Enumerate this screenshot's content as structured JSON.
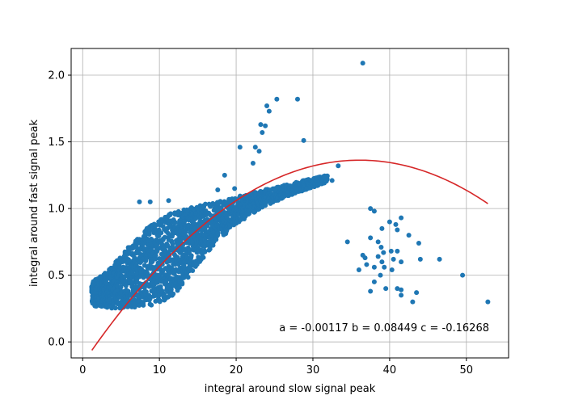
{
  "chart_data": {
    "type": "scatter",
    "xlabel": "integral around slow signal peak",
    "ylabel": "integral around fast signal peak",
    "xlim": [
      -1.5,
      55.5
    ],
    "ylim": [
      -0.12,
      2.2
    ],
    "xticks": [
      0,
      10,
      20,
      30,
      40,
      50
    ],
    "yticks": [
      0.0,
      0.5,
      1.0,
      1.5,
      2.0
    ],
    "xtick_labels": [
      "0",
      "10",
      "20",
      "30",
      "40",
      "50"
    ],
    "ytick_labels": [
      "0.0",
      "0.5",
      "1.0",
      "1.5",
      "2.0"
    ],
    "grid": true,
    "annotation": "a = -0.00117 b = 0.08449 c = -0.16268",
    "series": [
      {
        "kind": "scatter",
        "color": "#1f77b4",
        "dense_band": {
          "x_start": 1.2,
          "x_end": 32,
          "lower_curve": [
            [
              1.2,
              0.27
            ],
            [
              4,
              0.25
            ],
            [
              7,
              0.26
            ],
            [
              10,
              0.28
            ],
            [
              12,
              0.36
            ],
            [
              14,
              0.5
            ],
            [
              16,
              0.65
            ],
            [
              18,
              0.78
            ],
            [
              20,
              0.88
            ],
            [
              22,
              0.96
            ],
            [
              25,
              1.05
            ],
            [
              28,
              1.12
            ],
            [
              31,
              1.18
            ],
            [
              32,
              1.2
            ]
          ],
          "upper_curve": [
            [
              1.2,
              0.45
            ],
            [
              3,
              0.52
            ],
            [
              5,
              0.65
            ],
            [
              7,
              0.78
            ],
            [
              9,
              0.88
            ],
            [
              10,
              0.93
            ],
            [
              12,
              0.98
            ],
            [
              15,
              1.02
            ],
            [
              18,
              1.06
            ],
            [
              21,
              1.1
            ],
            [
              25,
              1.16
            ],
            [
              28,
              1.2
            ],
            [
              31,
              1.24
            ],
            [
              32,
              1.25
            ]
          ]
        },
        "points": [
          [
            36.5,
            2.09
          ],
          [
            25.3,
            1.82
          ],
          [
            28.0,
            1.82
          ],
          [
            24.0,
            1.77
          ],
          [
            24.3,
            1.73
          ],
          [
            23.2,
            1.63
          ],
          [
            23.8,
            1.62
          ],
          [
            23.4,
            1.57
          ],
          [
            28.8,
            1.51
          ],
          [
            20.5,
            1.46
          ],
          [
            22.5,
            1.46
          ],
          [
            23.0,
            1.43
          ],
          [
            22.2,
            1.34
          ],
          [
            33.3,
            1.32
          ],
          [
            31.6,
            1.24
          ],
          [
            32.5,
            1.21
          ],
          [
            30.5,
            1.23
          ],
          [
            17.6,
            1.14
          ],
          [
            19.8,
            1.15
          ],
          [
            18.5,
            1.25
          ],
          [
            7.4,
            1.05
          ],
          [
            8.8,
            1.05
          ],
          [
            11.2,
            1.06
          ],
          [
            37.5,
            1.0
          ],
          [
            38.0,
            0.98
          ],
          [
            41.5,
            0.93
          ],
          [
            40.0,
            0.9
          ],
          [
            40.8,
            0.88
          ],
          [
            39.0,
            0.85
          ],
          [
            42.5,
            0.8
          ],
          [
            41.0,
            0.84
          ],
          [
            43.8,
            0.74
          ],
          [
            37.5,
            0.78
          ],
          [
            38.5,
            0.75
          ],
          [
            38.9,
            0.71
          ],
          [
            34.5,
            0.75
          ],
          [
            41.0,
            0.68
          ],
          [
            39.2,
            0.67
          ],
          [
            40.2,
            0.68
          ],
          [
            36.5,
            0.65
          ],
          [
            36.8,
            0.63
          ],
          [
            38.5,
            0.64
          ],
          [
            39.0,
            0.6
          ],
          [
            37.0,
            0.58
          ],
          [
            38.0,
            0.56
          ],
          [
            39.3,
            0.56
          ],
          [
            40.5,
            0.62
          ],
          [
            41.5,
            0.6
          ],
          [
            44.0,
            0.62
          ],
          [
            46.5,
            0.62
          ],
          [
            38.8,
            0.5
          ],
          [
            36.0,
            0.54
          ],
          [
            40.3,
            0.54
          ],
          [
            49.5,
            0.5
          ],
          [
            38.0,
            0.45
          ],
          [
            37.5,
            0.38
          ],
          [
            39.5,
            0.4
          ],
          [
            41.0,
            0.4
          ],
          [
            41.5,
            0.39
          ],
          [
            43.5,
            0.37
          ],
          [
            41.5,
            0.35
          ],
          [
            43.0,
            0.3
          ],
          [
            52.8,
            0.3
          ]
        ]
      },
      {
        "kind": "fit",
        "color": "#d62728",
        "coefficients": {
          "a": -0.00117,
          "b": 0.08449,
          "c": -0.16268
        },
        "x_range": [
          1.2,
          52.8
        ]
      }
    ]
  }
}
